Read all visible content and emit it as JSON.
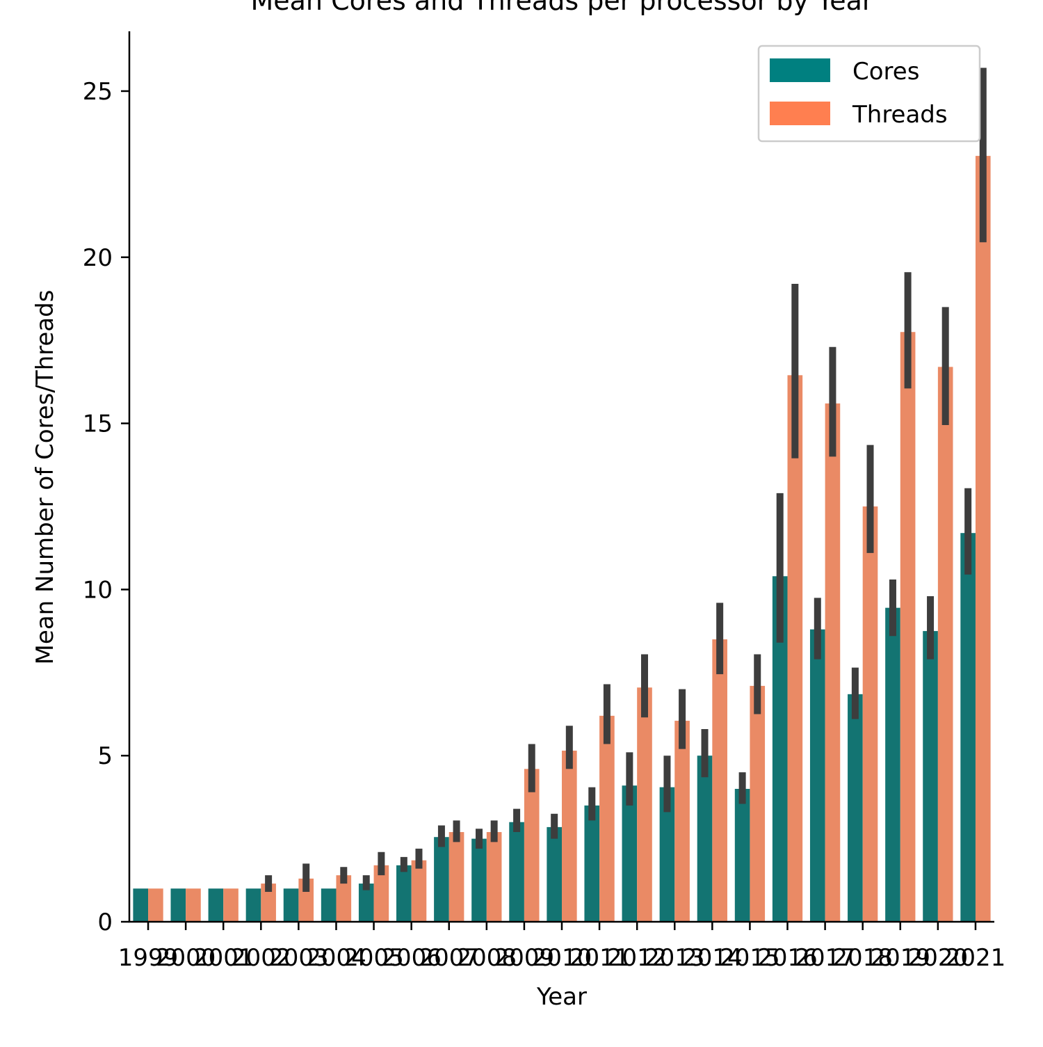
{
  "chart_data": {
    "type": "bar",
    "title": "Mean Cores and Threads per processor by Year",
    "xlabel": "Year",
    "ylabel": "Mean Number of Cores/Threads",
    "ylim": [
      0,
      26.8
    ],
    "yticks": [
      0,
      5,
      10,
      15,
      20,
      25
    ],
    "legend_position": "top-right",
    "categories": [
      "1999",
      "2000",
      "2001",
      "2002",
      "2003",
      "2004",
      "2005",
      "2006",
      "2007",
      "2008",
      "2009",
      "2010",
      "2011",
      "2012",
      "2013",
      "2014",
      "2015",
      "2016",
      "2017",
      "2018",
      "2019",
      "2020",
      "2021"
    ],
    "series": [
      {
        "name": "Cores",
        "color": "#137472",
        "legend_color": "#008080",
        "values": [
          1,
          1,
          1,
          1,
          1,
          1,
          1.15,
          1.7,
          2.55,
          2.5,
          3.0,
          2.85,
          3.5,
          4.1,
          4.05,
          5.0,
          4.0,
          10.4,
          8.8,
          6.85,
          9.45,
          8.75,
          11.7
        ],
        "ci_low": [
          null,
          null,
          null,
          null,
          null,
          null,
          0.95,
          1.5,
          2.25,
          2.2,
          2.7,
          2.5,
          3.05,
          3.5,
          3.3,
          4.35,
          3.55,
          8.4,
          7.9,
          6.1,
          8.6,
          7.9,
          10.45
        ],
        "ci_high": [
          null,
          null,
          null,
          null,
          null,
          null,
          1.4,
          1.95,
          2.9,
          2.8,
          3.4,
          3.25,
          4.05,
          5.1,
          5.0,
          5.8,
          4.5,
          12.9,
          9.75,
          7.65,
          10.3,
          9.8,
          13.05
        ]
      },
      {
        "name": "Threads",
        "color": "#EA8A65",
        "legend_color": "#FF7F50",
        "values": [
          1,
          1,
          1,
          1.15,
          1.3,
          1.4,
          1.7,
          1.85,
          2.7,
          2.7,
          4.6,
          5.15,
          6.2,
          7.05,
          6.05,
          8.5,
          7.1,
          16.45,
          15.6,
          12.5,
          17.75,
          16.7,
          23.05
        ],
        "ci_low": [
          null,
          null,
          null,
          0.9,
          0.9,
          1.15,
          1.4,
          1.6,
          2.4,
          2.4,
          3.9,
          4.6,
          5.35,
          6.15,
          5.2,
          7.45,
          6.25,
          13.95,
          14.0,
          11.1,
          16.05,
          14.95,
          20.45
        ],
        "ci_high": [
          null,
          null,
          null,
          1.4,
          1.75,
          1.65,
          2.1,
          2.2,
          3.05,
          3.05,
          5.35,
          5.9,
          7.15,
          8.05,
          7.0,
          9.6,
          8.05,
          19.2,
          17.3,
          14.35,
          19.55,
          18.5,
          25.7
        ]
      }
    ],
    "errorbar_color": "#3d3d3d"
  }
}
